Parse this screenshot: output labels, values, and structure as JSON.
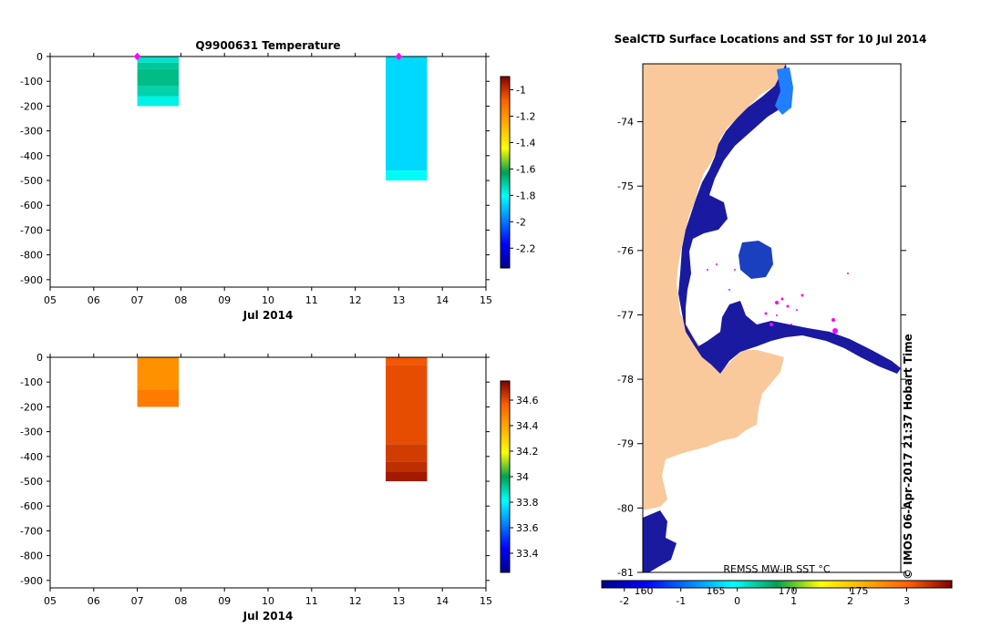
{
  "temp_panel": {
    "title": "Q9900631  Temperature",
    "xlabel": "Jul 2014",
    "x_ticks": [
      "05",
      "06",
      "07",
      "08",
      "09",
      "10",
      "11",
      "12",
      "13",
      "14",
      "15"
    ],
    "y_ticks": [
      "0",
      "-100",
      "-200",
      "-300",
      "-400",
      "-500",
      "-600",
      "-700",
      "-800",
      "-900"
    ],
    "colorbar_ticks": [
      "-1",
      "-1.2",
      "-1.4",
      "-1.6",
      "-1.8",
      "-2",
      "-2.2"
    ]
  },
  "sal_panel": {
    "xlabel": "Jul 2014",
    "x_ticks": [
      "05",
      "06",
      "07",
      "08",
      "09",
      "10",
      "11",
      "12",
      "13",
      "14",
      "15"
    ],
    "y_ticks": [
      "0",
      "-100",
      "-200",
      "-300",
      "-400",
      "-500",
      "-600",
      "-700",
      "-800",
      "-900"
    ],
    "colorbar_ticks": [
      "34.6",
      "34.4",
      "34.2",
      "34",
      "33.8",
      "33.6",
      "33.4"
    ]
  },
  "map_panel": {
    "title": "SealCTD Surface Locations and SST for 10 Jul 2014",
    "y_ticks": [
      "-74",
      "-75",
      "-76",
      "-77",
      "-78",
      "-79",
      "-80",
      "-81"
    ],
    "x_ticks_under": [
      "160",
      "165",
      "170",
      "175"
    ],
    "colorbar_label": "REMSS MW-IR SST °C",
    "colorbar_ticks": [
      "-2",
      "-1",
      "0",
      "1",
      "2",
      "3"
    ],
    "credit": "© IMOS 06-Apr-2017 21:37 Hobart Time"
  },
  "colors": {
    "land": "#f9c99b",
    "sea_ice_sst": "#1a1aa0",
    "track": "#ff00ff"
  },
  "chart_data": [
    {
      "type": "heatmap",
      "title": "Q9900631  Temperature",
      "xlabel": "Jul 2014",
      "ylabel": "",
      "xlim": [
        5,
        15
      ],
      "ylim": [
        -930,
        0
      ],
      "colorbar_range": [
        -2.35,
        -0.9
      ],
      "profiles": [
        {
          "x_start": 7.0,
          "x_end": 7.95,
          "depth_max": 200,
          "layers": [
            {
              "top": 0,
              "bottom": 25,
              "value": -1.75
            },
            {
              "top": 25,
              "bottom": 50,
              "value": -1.7
            },
            {
              "top": 50,
              "bottom": 120,
              "value": -1.68
            },
            {
              "top": 120,
              "bottom": 160,
              "value": -1.72
            },
            {
              "top": 160,
              "bottom": 200,
              "value": -1.78
            }
          ]
        },
        {
          "x_start": 12.7,
          "x_end": 13.65,
          "depth_max": 500,
          "layers": [
            {
              "top": 0,
              "bottom": 460,
              "value": -1.86
            },
            {
              "top": 460,
              "bottom": 500,
              "value": -1.8
            }
          ]
        }
      ],
      "surface_markers": [
        7.0,
        13.0
      ]
    },
    {
      "type": "heatmap",
      "title": "",
      "xlabel": "Jul 2014",
      "ylabel": "",
      "xlim": [
        5,
        15
      ],
      "ylim": [
        -930,
        0
      ],
      "colorbar_range": [
        33.25,
        34.75
      ],
      "profiles": [
        {
          "x_start": 7.0,
          "x_end": 7.95,
          "depth_max": 200,
          "layers": [
            {
              "top": 0,
              "bottom": 130,
              "value": 34.45
            },
            {
              "top": 130,
              "bottom": 200,
              "value": 34.5
            }
          ]
        },
        {
          "x_start": 12.7,
          "x_end": 13.65,
          "depth_max": 500,
          "layers": [
            {
              "top": 0,
              "bottom": 30,
              "value": 34.58
            },
            {
              "top": 30,
              "bottom": 350,
              "value": 34.6
            },
            {
              "top": 350,
              "bottom": 420,
              "value": 34.63
            },
            {
              "top": 420,
              "bottom": 460,
              "value": 34.66
            },
            {
              "top": 460,
              "bottom": 500,
              "value": 34.7
            }
          ]
        }
      ]
    }
  ]
}
